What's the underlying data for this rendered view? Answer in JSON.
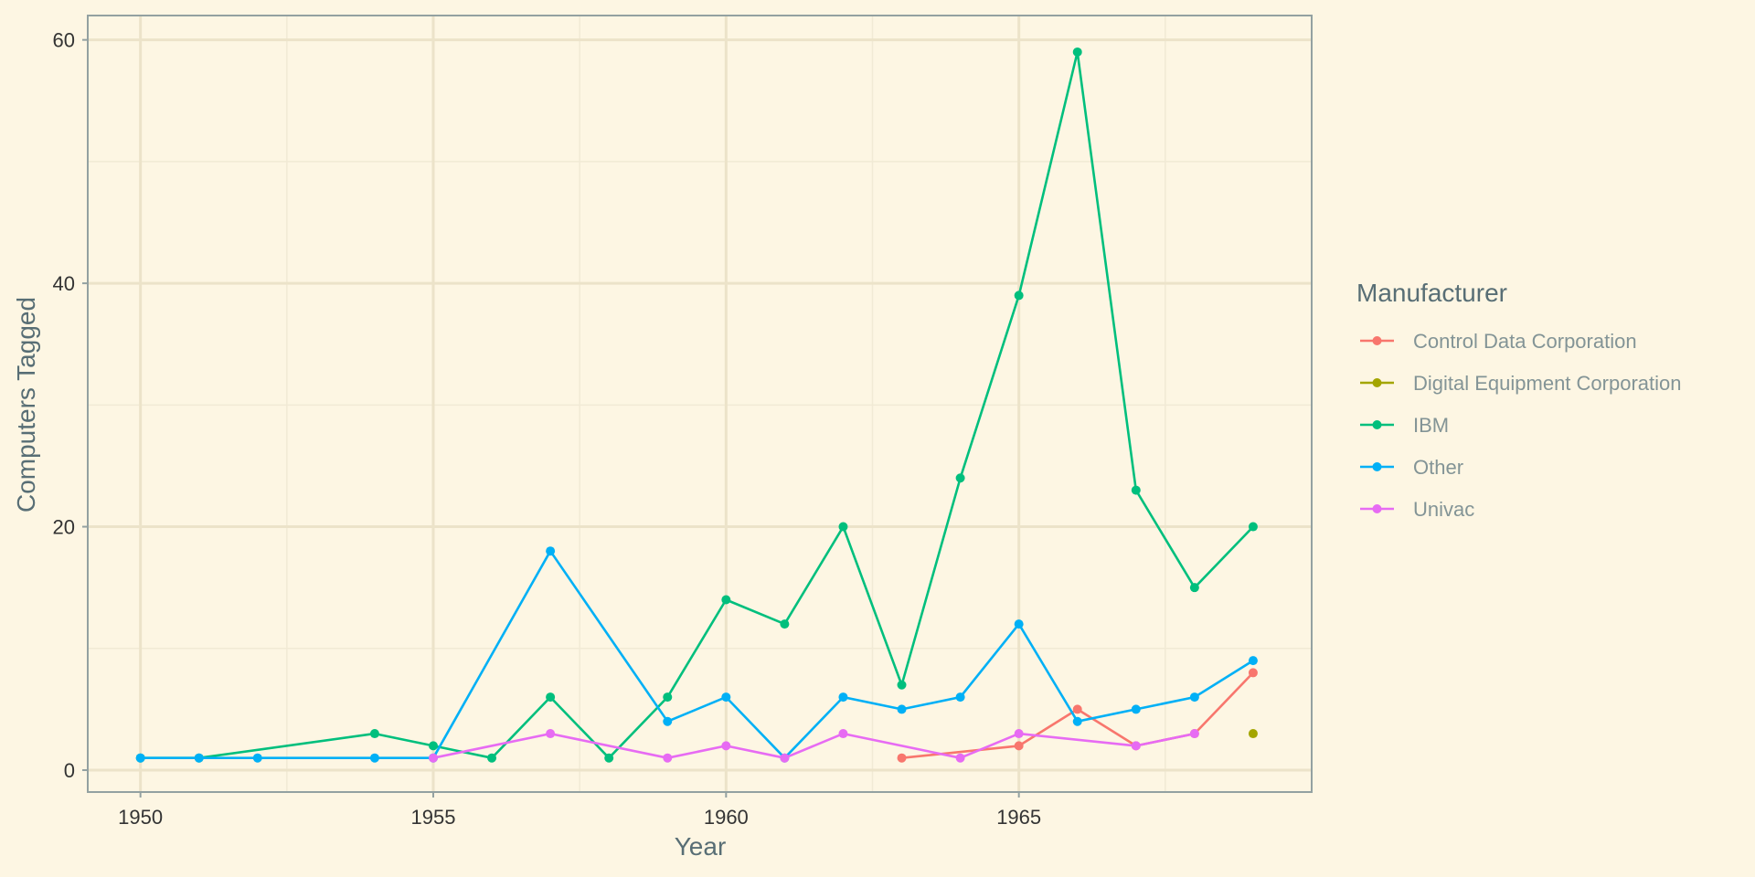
{
  "chart_data": {
    "type": "line",
    "title": "",
    "xlabel": "Year",
    "ylabel": "Computers Tagged",
    "xlim": [
      1949.1,
      1970
    ],
    "ylim": [
      -1.8,
      62
    ],
    "x_ticks": [
      1950,
      1955,
      1960,
      1965
    ],
    "y_ticks": [
      0,
      20,
      40,
      60
    ],
    "grid": true,
    "legend": {
      "title": "Manufacturer",
      "position": "right"
    },
    "series": [
      {
        "name": "Control Data Corporation",
        "color": "#F8766D",
        "points": [
          [
            1963,
            1
          ],
          [
            1965,
            2
          ],
          [
            1966,
            5
          ],
          [
            1967,
            2
          ],
          [
            1968,
            3
          ],
          [
            1969,
            8
          ]
        ]
      },
      {
        "name": "Digital Equipment Corporation",
        "color": "#A3A500",
        "points": [
          [
            1969,
            3
          ]
        ]
      },
      {
        "name": "IBM",
        "color": "#00BF7D",
        "points": [
          [
            1950,
            1
          ],
          [
            1951,
            1
          ],
          [
            1954,
            3
          ],
          [
            1955,
            2
          ],
          [
            1956,
            1
          ],
          [
            1957,
            6
          ],
          [
            1958,
            1
          ],
          [
            1959,
            6
          ],
          [
            1960,
            14
          ],
          [
            1961,
            12
          ],
          [
            1962,
            20
          ],
          [
            1963,
            7
          ],
          [
            1964,
            24
          ],
          [
            1965,
            39
          ],
          [
            1966,
            59
          ],
          [
            1967,
            23
          ],
          [
            1968,
            15
          ],
          [
            1969,
            20
          ]
        ]
      },
      {
        "name": "Other",
        "color": "#00B0F6",
        "points": [
          [
            1950,
            1
          ],
          [
            1951,
            1
          ],
          [
            1952,
            1
          ],
          [
            1954,
            1
          ],
          [
            1955,
            1
          ],
          [
            1957,
            18
          ],
          [
            1959,
            4
          ],
          [
            1960,
            6
          ],
          [
            1961,
            1
          ],
          [
            1962,
            6
          ],
          [
            1963,
            5
          ],
          [
            1964,
            6
          ],
          [
            1965,
            12
          ],
          [
            1966,
            4
          ],
          [
            1967,
            5
          ],
          [
            1968,
            6
          ],
          [
            1969,
            9
          ]
        ]
      },
      {
        "name": "Univac",
        "color": "#E76BF3",
        "points": [
          [
            1955,
            1
          ],
          [
            1957,
            3
          ],
          [
            1959,
            1
          ],
          [
            1960,
            2
          ],
          [
            1961,
            1
          ],
          [
            1962,
            3
          ],
          [
            1964,
            1
          ],
          [
            1965,
            3
          ],
          [
            1967,
            2
          ],
          [
            1968,
            3
          ]
        ]
      }
    ]
  }
}
